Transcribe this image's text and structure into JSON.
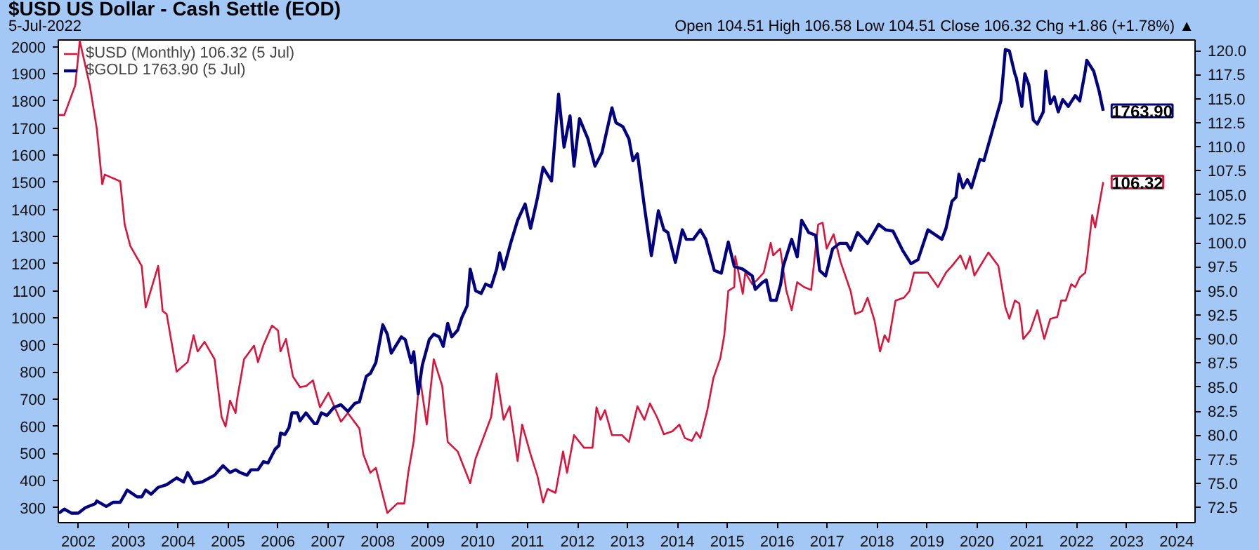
{
  "chart_data": {
    "type": "line",
    "title": "$USD US Dollar - Cash Settle (EOD)",
    "subtitle": "5-Jul-2022",
    "annotations": [
      "Open 104.51  High 106.58  Low 104.51  Close 106.32  Chg +1.86 (+1.78%) ▲"
    ],
    "xlim": [
      2001.6,
      2024.37
    ],
    "xticks": [
      2002,
      2003,
      2004,
      2005,
      2006,
      2007,
      2008,
      2009,
      2010,
      2011,
      2012,
      2013,
      2014,
      2015,
      2016,
      2017,
      2018,
      2019,
      2020,
      2021,
      2022,
      2023,
      2024
    ],
    "ylim": [
      245,
      2025
    ],
    "yticks": [
      300,
      400,
      500,
      600,
      700,
      800,
      900,
      1000,
      1100,
      1200,
      1300,
      1400,
      1500,
      1600,
      1700,
      1800,
      1900,
      2000
    ],
    "y2lim": [
      70.9,
      121.1
    ],
    "y2ticks": [
      72.5,
      {
        "value": 75,
        "label": "75.0"
      },
      77.5,
      {
        "value": 80,
        "label": "80.0"
      },
      82.5,
      {
        "value": 85,
        "label": "85.0"
      },
      87.5,
      {
        "value": 90,
        "label": "90.0"
      },
      92.5,
      {
        "value": 95,
        "label": "95.0"
      },
      97.5,
      {
        "value": 100,
        "label": "100.0"
      },
      102.5,
      {
        "value": 105,
        "label": "105.0"
      },
      107.5,
      {
        "value": 110,
        "label": "110.0"
      },
      112.5,
      {
        "value": 115,
        "label": "115.0"
      },
      117.5,
      {
        "value": 120,
        "label": "120.0"
      }
    ],
    "legend": "top left",
    "series": [
      {
        "name": "$USD (Monthly) 106.32 (5 Jul)",
        "color": "#dc143c",
        "axis": "y2",
        "x": [
          2001.61,
          2001.72,
          2001.94,
          2002.03,
          2002.23,
          2002.37,
          2002.48,
          2002.53,
          2002.84,
          2002.93,
          2003.04,
          2003.27,
          2003.35,
          2003.6,
          2003.69,
          2003.77,
          2003.97,
          2004.19,
          2004.31,
          2004.39,
          2004.53,
          2004.73,
          2004.87,
          2004.95,
          2005.04,
          2005.15,
          2005.18,
          2005.32,
          2005.52,
          2005.6,
          2005.71,
          2005.88,
          2006.0,
          2006.05,
          2006.16,
          2006.3,
          2006.44,
          2006.56,
          2006.7,
          2006.84,
          2007.01,
          2007.26,
          2007.4,
          2007.63,
          2007.71,
          2007.85,
          2007.96,
          2008.19,
          2008.39,
          2008.53,
          2008.61,
          2008.72,
          2008.84,
          2008.98,
          2009.12,
          2009.29,
          2009.4,
          2009.6,
          2009.85,
          2009.96,
          2010.27,
          2010.38,
          2010.52,
          2010.64,
          2010.8,
          2010.89,
          2011.06,
          2011.2,
          2011.31,
          2011.4,
          2011.56,
          2011.71,
          2011.79,
          2011.93,
          2012.13,
          2012.3,
          2012.38,
          2012.46,
          2012.55,
          2012.69,
          2012.89,
          2013.03,
          2013.2,
          2013.34,
          2013.45,
          2013.59,
          2013.73,
          2013.9,
          2014.04,
          2014.15,
          2014.29,
          2014.38,
          2014.46,
          2014.6,
          2014.72,
          2014.86,
          2014.94,
          2015.02,
          2015.14,
          2015.16,
          2015.31,
          2015.36,
          2015.5,
          2015.59,
          2015.73,
          2015.87,
          2015.92,
          2016.06,
          2016.18,
          2016.29,
          2016.4,
          2016.54,
          2016.68,
          2016.82,
          2016.91,
          2016.99,
          2017.13,
          2017.27,
          2017.47,
          2017.56,
          2017.7,
          2017.81,
          2017.95,
          2018.06,
          2018.15,
          2018.23,
          2018.37,
          2018.54,
          2018.65,
          2018.74,
          2019.02,
          2019.22,
          2019.38,
          2019.5,
          2019.67,
          2019.78,
          2019.86,
          2019.95,
          2020.23,
          2020.43,
          2020.57,
          2020.65,
          2020.76,
          2020.85,
          2020.93,
          2021.07,
          2021.21,
          2021.35,
          2021.47,
          2021.61,
          2021.69,
          2021.78,
          2021.89,
          2021.97,
          2022.06,
          2022.17,
          2022.2,
          2022.31,
          2022.37,
          2022.53
        ],
        "values": [
          113.3,
          113.3,
          116.4,
          121,
          116.4,
          111.9,
          106.1,
          107.1,
          106.4,
          101.9,
          99.7,
          97.6,
          93.3,
          97.6,
          92.9,
          92.6,
          86.6,
          87.6,
          90.4,
          88.7,
          89.7,
          87.9,
          81.9,
          80.9,
          83.6,
          82.3,
          83.7,
          87.9,
          89.3,
          87.6,
          89.4,
          91.4,
          90.9,
          88.7,
          90.0,
          86.1,
          85.0,
          85.1,
          85.7,
          82.9,
          84.4,
          81.4,
          82.3,
          80.7,
          78.0,
          76.1,
          76.6,
          71.9,
          72.9,
          72.9,
          76.1,
          79.4,
          86.1,
          81.1,
          87.9,
          85.1,
          79.3,
          78.3,
          75.0,
          77.6,
          81.9,
          86.4,
          81.6,
          83.0,
          77.3,
          81.1,
          78.0,
          75.7,
          73.0,
          74.4,
          74.0,
          78.3,
          76.1,
          80.0,
          78.7,
          78.7,
          82.9,
          81.6,
          82.6,
          80.0,
          80.0,
          79.3,
          83.0,
          81.6,
          83.3,
          81.9,
          80.1,
          80.4,
          81.1,
          79.7,
          79.4,
          80.3,
          79.7,
          82.6,
          85.9,
          88.0,
          90.4,
          95.0,
          95.4,
          98.6,
          94.7,
          96.9,
          95.7,
          96.1,
          96.9,
          100.0,
          98.7,
          99.4,
          95.1,
          93.0,
          95.9,
          95.4,
          95.1,
          101.9,
          102.1,
          99.4,
          100.9,
          98.0,
          95.0,
          92.6,
          92.9,
          94.3,
          91.9,
          88.7,
          90.4,
          89.7,
          94.0,
          94.3,
          95.0,
          96.9,
          96.9,
          95.4,
          96.9,
          97.6,
          98.7,
          97.3,
          98.6,
          96.6,
          99.0,
          97.6,
          93.3,
          92.1,
          94.0,
          93.7,
          90.0,
          90.9,
          93.0,
          90.0,
          92.1,
          92.3,
          94.0,
          94.0,
          95.7,
          95.4,
          96.4,
          96.9,
          98.0,
          102.9,
          101.6,
          106.32
        ],
        "value_labels": [
          null,
          null,
          null,
          null,
          null,
          null,
          null,
          null,
          null,
          null,
          null,
          null,
          null,
          null,
          null,
          null,
          null,
          null,
          null,
          null,
          null,
          null,
          null,
          null,
          null,
          null,
          null,
          null,
          null,
          null,
          null,
          null,
          null,
          null,
          null,
          null,
          null,
          null,
          null,
          null,
          null,
          null,
          null,
          null,
          null,
          null,
          null,
          null,
          null,
          null,
          null,
          null,
          null,
          null,
          null,
          null,
          null,
          null,
          null,
          null,
          null,
          null,
          null,
          null,
          null,
          null,
          null,
          null,
          null,
          null,
          null,
          null,
          null,
          null,
          null,
          null,
          null,
          null,
          null,
          null,
          null,
          null,
          null,
          null,
          null,
          null,
          null,
          null,
          null,
          null,
          null,
          null,
          null,
          null,
          null,
          null,
          null,
          null,
          null,
          null,
          null,
          null,
          null,
          null,
          null,
          null,
          null,
          null,
          null,
          null,
          null,
          null,
          null,
          null,
          null,
          null,
          null,
          null,
          null,
          null,
          null,
          null,
          null,
          null,
          null,
          null,
          null,
          null,
          null,
          null,
          null,
          null,
          null,
          null,
          null,
          null,
          null,
          null,
          null,
          null,
          null,
          null,
          null,
          null,
          null,
          null,
          null,
          null,
          null,
          null,
          null,
          null,
          null,
          null,
          null,
          null,
          null,
          null,
          null,
          "106.32"
        ]
      },
      {
        "name": "$GOLD 1763.90 (5 Jul)",
        "color": "#000080",
        "x": [
          2001.61,
          2001.72,
          2001.86,
          2002.0,
          2002.14,
          2002.34,
          2002.37,
          2002.56,
          2002.7,
          2002.84,
          2002.98,
          2003.18,
          2003.27,
          2003.35,
          2003.46,
          2003.6,
          2003.77,
          2003.97,
          2004.11,
          2004.19,
          2004.31,
          2004.48,
          2004.73,
          2004.9,
          2005.04,
          2005.15,
          2005.24,
          2005.38,
          2005.46,
          2005.6,
          2005.71,
          2005.8,
          2005.94,
          2006.02,
          2006.05,
          2006.14,
          2006.22,
          2006.28,
          2006.39,
          2006.44,
          2006.56,
          2006.73,
          2006.78,
          2006.87,
          2006.98,
          2007.12,
          2007.26,
          2007.4,
          2007.54,
          2007.63,
          2007.77,
          2007.85,
          2007.96,
          2008.1,
          2008.19,
          2008.27,
          2008.47,
          2008.55,
          2008.67,
          2008.72,
          2008.81,
          2008.89,
          2009.03,
          2009.12,
          2009.23,
          2009.31,
          2009.4,
          2009.48,
          2009.6,
          2009.68,
          2009.79,
          2009.85,
          2009.96,
          2010.07,
          2010.16,
          2010.27,
          2010.38,
          2010.44,
          2010.52,
          2010.66,
          2010.8,
          2010.95,
          2011.06,
          2011.2,
          2011.31,
          2011.48,
          2011.62,
          2011.73,
          2011.85,
          2011.93,
          2012.04,
          2012.21,
          2012.35,
          2012.49,
          2012.69,
          2012.77,
          2012.91,
          2013.03,
          2013.11,
          2013.2,
          2013.34,
          2013.48,
          2013.62,
          2013.73,
          2013.81,
          2013.96,
          2014.1,
          2014.18,
          2014.32,
          2014.46,
          2014.57,
          2014.74,
          2014.88,
          2015.02,
          2015.14,
          2015.31,
          2015.5,
          2015.56,
          2015.7,
          2015.78,
          2015.87,
          2015.98,
          2016.07,
          2016.12,
          2016.29,
          2016.4,
          2016.49,
          2016.63,
          2016.77,
          2016.85,
          2016.97,
          2017.11,
          2017.25,
          2017.39,
          2017.47,
          2017.61,
          2017.81,
          2018.03,
          2018.17,
          2018.32,
          2018.51,
          2018.68,
          2018.82,
          2019.02,
          2019.3,
          2019.38,
          2019.5,
          2019.58,
          2019.64,
          2019.72,
          2019.81,
          2019.89,
          2020.06,
          2020.14,
          2020.34,
          2020.48,
          2020.57,
          2020.65,
          2020.76,
          2020.79,
          2020.9,
          2020.96,
          2021.04,
          2021.13,
          2021.21,
          2021.33,
          2021.38,
          2021.47,
          2021.55,
          2021.63,
          2021.72,
          2021.83,
          2021.97,
          2022.06,
          2022.17,
          2022.2,
          2022.34,
          2022.45,
          2022.53
        ],
        "values": [
          280,
          295,
          280,
          280,
          300,
          315,
          325,
          305,
          320,
          320,
          365,
          340,
          340,
          365,
          350,
          375,
          385,
          410,
          395,
          430,
          390,
          395,
          420,
          455,
          430,
          440,
          430,
          420,
          440,
          440,
          470,
          465,
          515,
          530,
          575,
          570,
          595,
          650,
          650,
          620,
          650,
          610,
          610,
          650,
          640,
          670,
          680,
          655,
          685,
          690,
          785,
          795,
          835,
          975,
          940,
          870,
          930,
          920,
          835,
          875,
          720,
          825,
          920,
          940,
          930,
          895,
          980,
          930,
          955,
          1000,
          1045,
          1180,
          1100,
          1090,
          1125,
          1115,
          1180,
          1240,
          1180,
          1275,
          1360,
          1420,
          1330,
          1445,
          1555,
          1505,
          1825,
          1630,
          1745,
          1560,
          1735,
          1660,
          1560,
          1610,
          1775,
          1720,
          1705,
          1660,
          1580,
          1605,
          1410,
          1230,
          1395,
          1325,
          1315,
          1205,
          1325,
          1290,
          1290,
          1325,
          1290,
          1175,
          1165,
          1280,
          1190,
          1180,
          1155,
          1105,
          1130,
          1140,
          1065,
          1065,
          1125,
          1190,
          1290,
          1225,
          1360,
          1315,
          1305,
          1175,
          1155,
          1255,
          1275,
          1275,
          1250,
          1315,
          1275,
          1345,
          1325,
          1320,
          1250,
          1200,
          1215,
          1325,
          1290,
          1330,
          1430,
          1445,
          1530,
          1480,
          1510,
          1480,
          1585,
          1580,
          1710,
          1800,
          1990,
          1985,
          1900,
          1885,
          1780,
          1900,
          1860,
          1730,
          1715,
          1760,
          1910,
          1790,
          1815,
          1760,
          1805,
          1780,
          1820,
          1800,
          1910,
          1950,
          1910,
          1835,
          1763.9
        ],
        "value_labels": [
          null,
          null,
          null,
          null,
          null,
          null,
          null,
          null,
          null,
          null,
          null,
          null,
          null,
          null,
          null,
          null,
          null,
          null,
          null,
          null,
          null,
          null,
          null,
          null,
          null,
          null,
          null,
          null,
          null,
          null,
          null,
          null,
          null,
          null,
          null,
          null,
          null,
          null,
          null,
          null,
          null,
          null,
          null,
          null,
          null,
          null,
          null,
          null,
          null,
          null,
          null,
          null,
          null,
          null,
          null,
          null,
          null,
          null,
          null,
          null,
          null,
          null,
          null,
          null,
          null,
          null,
          null,
          null,
          null,
          null,
          null,
          null,
          null,
          null,
          null,
          null,
          null,
          null,
          null,
          null,
          null,
          null,
          null,
          null,
          null,
          null,
          null,
          null,
          null,
          null,
          null,
          null,
          null,
          null,
          null,
          null,
          null,
          null,
          null,
          null,
          null,
          null,
          null,
          null,
          null,
          null,
          null,
          null,
          null,
          null,
          null,
          null,
          null,
          null,
          null,
          null,
          null,
          null,
          null,
          null,
          null,
          null,
          null,
          null,
          null,
          null,
          null,
          null,
          null,
          null,
          null,
          null,
          null,
          null,
          null,
          null,
          null,
          null,
          null,
          null,
          null,
          null,
          null,
          null,
          null,
          null,
          null,
          null,
          null,
          null,
          null,
          null,
          null,
          null,
          null,
          null,
          null,
          null,
          null,
          null,
          null,
          null,
          null,
          null,
          null,
          null,
          null,
          null,
          null,
          null,
          null,
          null,
          null,
          null,
          null,
          null,
          null,
          null,
          "1763.90"
        ]
      }
    ]
  }
}
